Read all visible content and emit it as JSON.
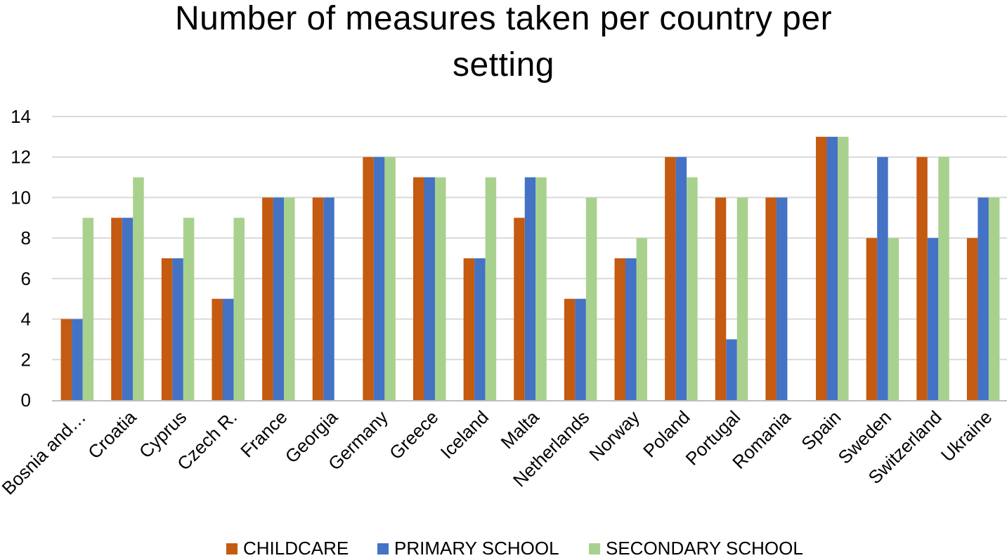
{
  "chart_data": {
    "type": "bar",
    "title_lines": [
      "Number of measures taken per country per",
      "setting"
    ],
    "title": "Number of measures taken per country per setting",
    "xlabel": "",
    "ylabel": "",
    "ylim": [
      0,
      14
    ],
    "yticks": [
      0,
      2,
      4,
      6,
      8,
      10,
      12,
      14
    ],
    "grid": true,
    "legend_position": "bottom",
    "categories": [
      "Bosnia and…",
      "Croatia",
      "Cyprus",
      "Czech R.",
      "France",
      "Georgia",
      "Germany",
      "Greece",
      "Iceland",
      "Malta",
      "Netherlands",
      "Norway",
      "Poland",
      "Portugal",
      "Romania",
      "Spain",
      "Sweden",
      "Switzerland",
      "Ukraine"
    ],
    "series": [
      {
        "name": "CHILDCARE",
        "color": "#c55a11",
        "values": [
          4,
          9,
          7,
          5,
          10,
          10,
          12,
          11,
          7,
          9,
          5,
          7,
          12,
          10,
          10,
          13,
          8,
          12,
          8
        ]
      },
      {
        "name": "PRIMARY SCHOOL",
        "color": "#4472c4",
        "values": [
          4,
          9,
          7,
          5,
          10,
          10,
          12,
          11,
          7,
          11,
          5,
          7,
          12,
          3,
          10,
          13,
          12,
          8,
          10
        ]
      },
      {
        "name": "SECONDARY SCHOOL",
        "color": "#a9d18e",
        "values": [
          9,
          11,
          9,
          9,
          10,
          0,
          12,
          11,
          11,
          11,
          10,
          8,
          11,
          10,
          0,
          13,
          8,
          12,
          10
        ]
      }
    ],
    "gridline_color": "#d9d9d9",
    "axis_color": "#bfbfbf"
  }
}
